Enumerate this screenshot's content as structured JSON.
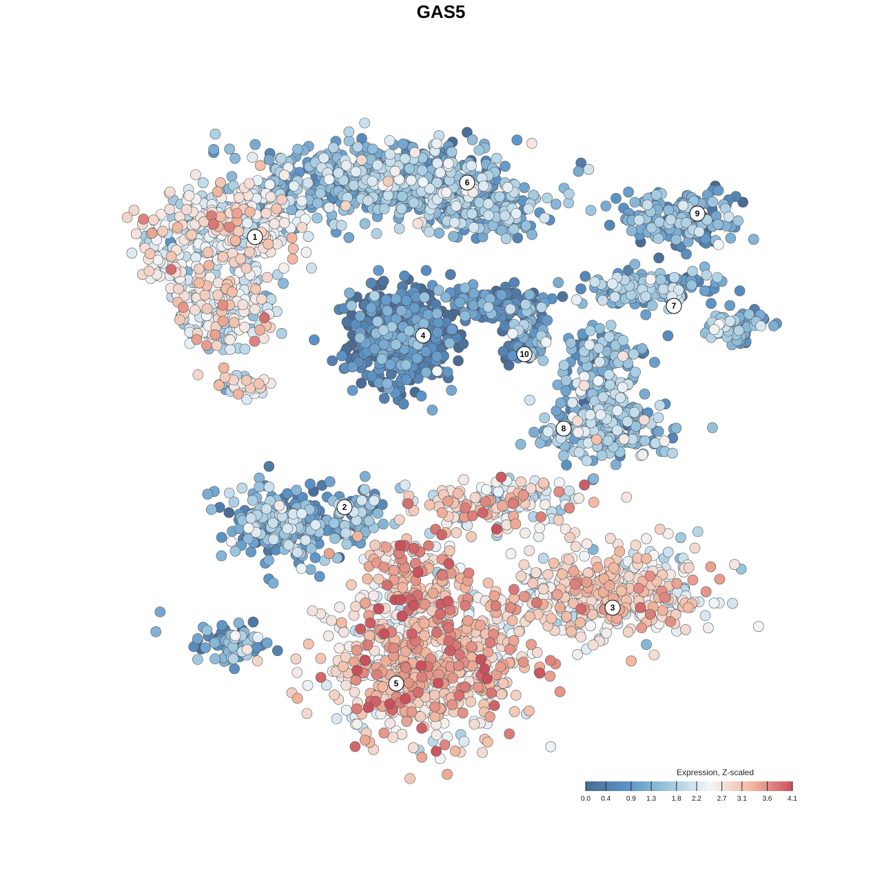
{
  "chart_data": {
    "type": "scatter",
    "title": "GAS5",
    "xlabel": "",
    "ylabel": "",
    "grid": false,
    "legend": {
      "title": "Expression, Z-scaled",
      "placement": "bottom-right",
      "ticks": [
        "0.0",
        "0.4",
        "0.9",
        "1.3",
        "1.8",
        "2.2",
        "2.7",
        "3.1",
        "3.6",
        "4.1"
      ],
      "range": [
        0.0,
        4.1
      ],
      "colors": [
        "#4a6b94",
        "#5b93c7",
        "#9dc7df",
        "#f3f6f9",
        "#f2b8a0",
        "#c9515c"
      ]
    },
    "clusters": [
      {
        "id": "1",
        "mean_expression": 2.3
      },
      {
        "id": "2",
        "mean_expression": 1.2
      },
      {
        "id": "3",
        "mean_expression": 2.6
      },
      {
        "id": "4",
        "mean_expression": 0.4
      },
      {
        "id": "5",
        "mean_expression": 3.0
      },
      {
        "id": "6",
        "mean_expression": 1.3
      },
      {
        "id": "7",
        "mean_expression": 1.2
      },
      {
        "id": "8",
        "mean_expression": 1.4
      },
      {
        "id": "9",
        "mean_expression": 1.0
      },
      {
        "id": "10",
        "mean_expression": 0.8
      }
    ]
  }
}
